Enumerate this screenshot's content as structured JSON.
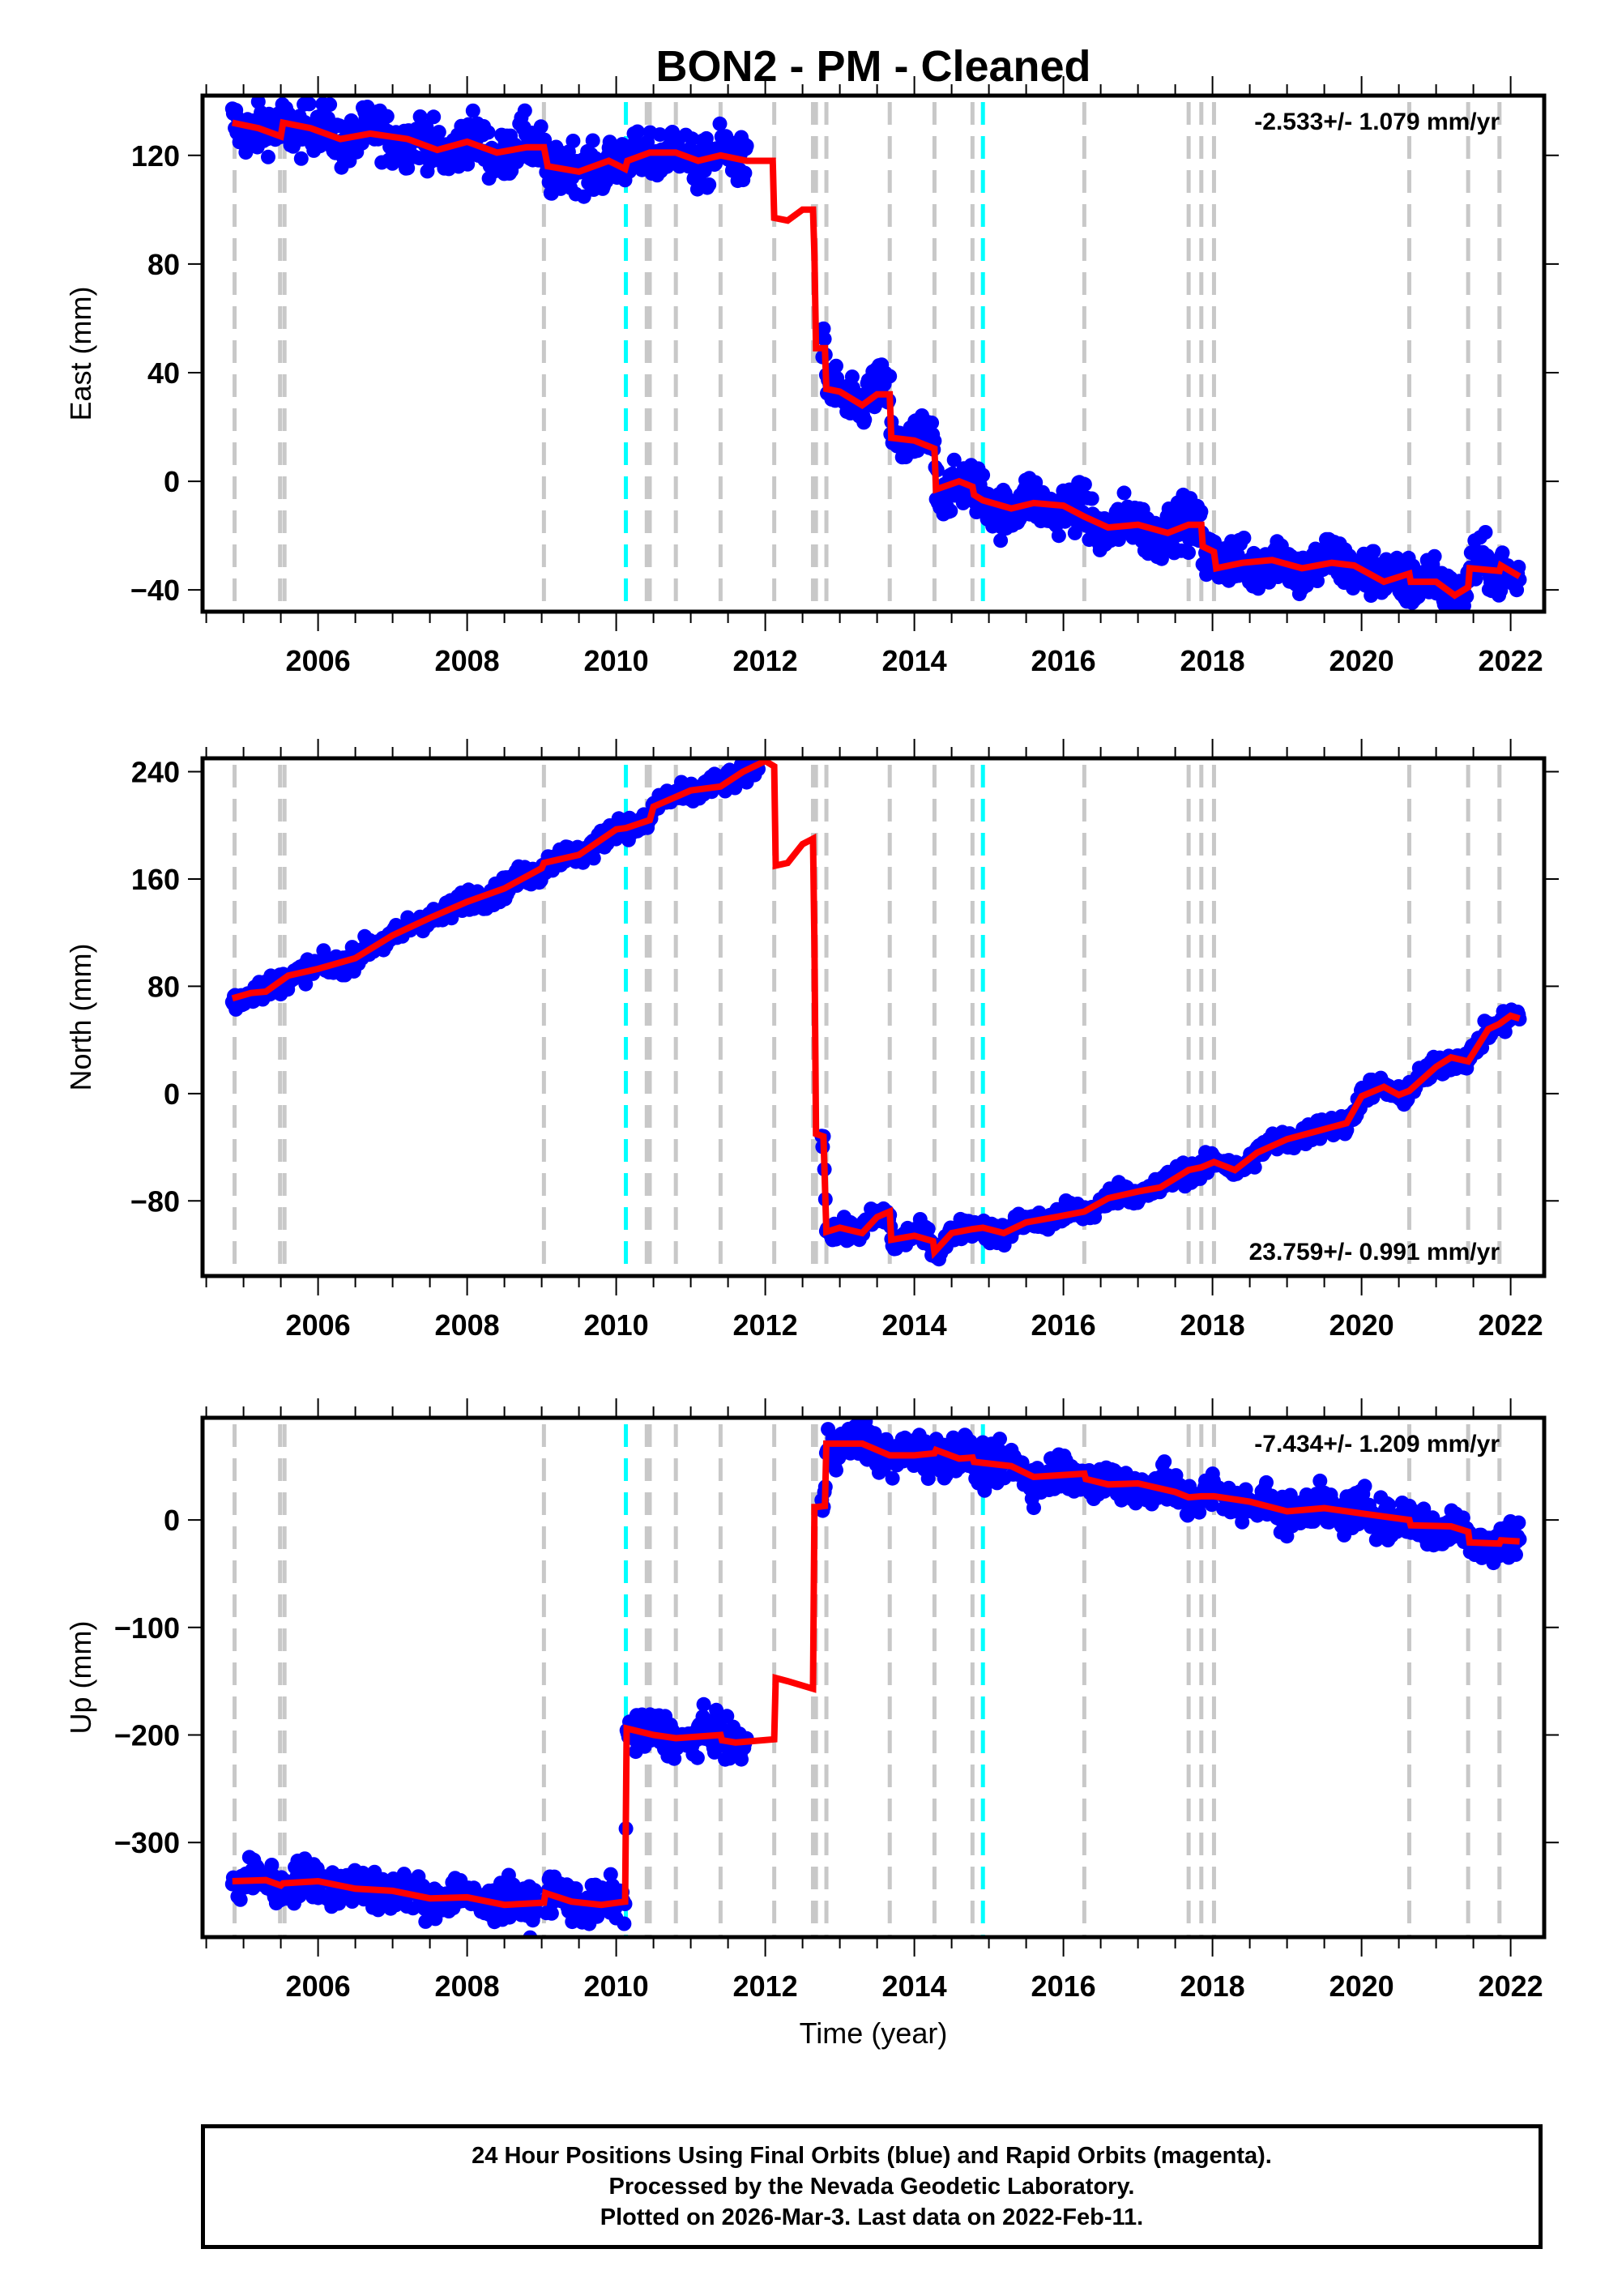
{
  "chart_data": {
    "type": "scatter",
    "title": "BON2  - PM - Cleaned",
    "xlabel": "Time (year)",
    "xlim": [
      2004.45,
      2022.45
    ],
    "x_ticks": [
      2006,
      2008,
      2010,
      2012,
      2014,
      2016,
      2018,
      2020,
      2022
    ],
    "x_tick_labels": [
      "2006",
      "2008",
      "2010",
      "2012",
      "2014",
      "2016",
      "2018",
      "2020",
      "2022"
    ],
    "grid": false,
    "colors": {
      "final_orbits": "#0000ff",
      "model": "#ff0000",
      "equipment_change": "#c8c8c8",
      "earthquake": "#00ffff",
      "frame": "#000000"
    },
    "event_markers": {
      "equipment_change": [
        2004.88,
        2005.49,
        2005.55,
        2009.03,
        2010.41,
        2010.45,
        2010.8,
        2011.4,
        2012.12,
        2012.64,
        2012.68,
        2012.82,
        2013.67,
        2014.27,
        2014.78,
        2016.28,
        2017.68,
        2017.85,
        2018.02,
        2020.64,
        2021.43,
        2021.85
      ],
      "earthquake": [
        2010.13,
        2014.92
      ]
    },
    "data_range": [
      2004.85,
      2022.12
    ],
    "panels": [
      {
        "name": "east",
        "ylabel": "East (mm)",
        "ylim": [
          -48,
          142
        ],
        "y_ticks": [
          -40,
          0,
          40,
          80,
          120
        ],
        "y_tick_labels": [
          "−40",
          "0",
          "40",
          "80",
          "120"
        ],
        "rate_text": "-2.533+/- 1.079 mm/yr",
        "rate_position": "top-right",
        "spread": 4.5,
        "gaps": [
          [
            2011.75,
            2012.75
          ]
        ],
        "model": [
          [
            2004.85,
            132
          ],
          [
            2005.2,
            130
          ],
          [
            2005.5,
            127
          ],
          [
            2005.53,
            132
          ],
          [
            2005.9,
            130
          ],
          [
            2006.3,
            126
          ],
          [
            2006.7,
            128
          ],
          [
            2007.2,
            126
          ],
          [
            2007.6,
            122
          ],
          [
            2008.0,
            125
          ],
          [
            2008.4,
            121
          ],
          [
            2008.8,
            123
          ],
          [
            2009.03,
            123
          ],
          [
            2009.08,
            116
          ],
          [
            2009.5,
            114
          ],
          [
            2009.9,
            118
          ],
          [
            2010.12,
            115
          ],
          [
            2010.15,
            118
          ],
          [
            2010.45,
            121
          ],
          [
            2010.8,
            121
          ],
          [
            2011.1,
            118
          ],
          [
            2011.4,
            120
          ],
          [
            2011.75,
            118
          ],
          [
            2012.1,
            118
          ],
          [
            2012.12,
            97
          ],
          [
            2012.3,
            96
          ],
          [
            2012.5,
            100
          ],
          [
            2012.64,
            100
          ],
          [
            2012.66,
            83
          ],
          [
            2012.68,
            49
          ],
          [
            2012.8,
            49
          ],
          [
            2012.82,
            34
          ],
          [
            2013.0,
            33
          ],
          [
            2013.3,
            28
          ],
          [
            2013.5,
            32
          ],
          [
            2013.67,
            32
          ],
          [
            2013.69,
            16
          ],
          [
            2014.0,
            15
          ],
          [
            2014.27,
            12
          ],
          [
            2014.29,
            -3
          ],
          [
            2014.6,
            0
          ],
          [
            2014.78,
            -2
          ],
          [
            2014.8,
            -5
          ],
          [
            2014.92,
            -7
          ],
          [
            2015.3,
            -10
          ],
          [
            2015.6,
            -8
          ],
          [
            2016.0,
            -9
          ],
          [
            2016.28,
            -13
          ],
          [
            2016.6,
            -17
          ],
          [
            2017.0,
            -16
          ],
          [
            2017.4,
            -19
          ],
          [
            2017.68,
            -16
          ],
          [
            2017.85,
            -16
          ],
          [
            2017.87,
            -24
          ],
          [
            2018.02,
            -26
          ],
          [
            2018.05,
            -32
          ],
          [
            2018.4,
            -30
          ],
          [
            2018.8,
            -29
          ],
          [
            2019.2,
            -32
          ],
          [
            2019.6,
            -30
          ],
          [
            2019.9,
            -31
          ],
          [
            2020.3,
            -37
          ],
          [
            2020.64,
            -34
          ],
          [
            2020.66,
            -37
          ],
          [
            2021.0,
            -37
          ],
          [
            2021.25,
            -42
          ],
          [
            2021.43,
            -39
          ],
          [
            2021.45,
            -32
          ],
          [
            2021.85,
            -33
          ],
          [
            2021.87,
            -31
          ],
          [
            2022.12,
            -35
          ]
        ]
      },
      {
        "name": "north",
        "ylabel": "North (mm)",
        "ylim": [
          -136,
          250
        ],
        "y_ticks": [
          -80,
          0,
          80,
          160,
          240
        ],
        "y_tick_labels": [
          "−80",
          "0",
          "80",
          "160",
          "240"
        ],
        "rate_text": "23.759+/- 0.991 mm/yr",
        "rate_position": "bottom-right",
        "spread": 4,
        "gaps": [
          [
            2011.95,
            2012.75
          ]
        ],
        "model": [
          [
            2004.85,
            71
          ],
          [
            2005.1,
            75
          ],
          [
            2005.3,
            76
          ],
          [
            2005.6,
            88
          ],
          [
            2006.0,
            93
          ],
          [
            2006.5,
            101
          ],
          [
            2007.0,
            118
          ],
          [
            2007.5,
            131
          ],
          [
            2008.0,
            143
          ],
          [
            2008.5,
            153
          ],
          [
            2009.0,
            168
          ],
          [
            2009.03,
            172
          ],
          [
            2009.5,
            178
          ],
          [
            2010.0,
            197
          ],
          [
            2010.13,
            198
          ],
          [
            2010.45,
            204
          ],
          [
            2010.5,
            214
          ],
          [
            2011.0,
            226
          ],
          [
            2011.4,
            229
          ],
          [
            2011.7,
            240
          ],
          [
            2012.0,
            248
          ],
          [
            2012.12,
            244
          ],
          [
            2012.14,
            170
          ],
          [
            2012.3,
            172
          ],
          [
            2012.5,
            186
          ],
          [
            2012.64,
            190
          ],
          [
            2012.66,
            110
          ],
          [
            2012.68,
            -30
          ],
          [
            2012.78,
            -32
          ],
          [
            2012.82,
            -103
          ],
          [
            2013.0,
            -100
          ],
          [
            2013.3,
            -104
          ],
          [
            2013.5,
            -92
          ],
          [
            2013.67,
            -88
          ],
          [
            2013.69,
            -109
          ],
          [
            2014.0,
            -106
          ],
          [
            2014.25,
            -110
          ],
          [
            2014.27,
            -118
          ],
          [
            2014.5,
            -104
          ],
          [
            2014.78,
            -101
          ],
          [
            2014.92,
            -100
          ],
          [
            2015.2,
            -104
          ],
          [
            2015.5,
            -96
          ],
          [
            2015.9,
            -92
          ],
          [
            2016.28,
            -88
          ],
          [
            2016.6,
            -78
          ],
          [
            2017.0,
            -73
          ],
          [
            2017.3,
            -70
          ],
          [
            2017.68,
            -57
          ],
          [
            2017.85,
            -55
          ],
          [
            2018.02,
            -51
          ],
          [
            2018.3,
            -57
          ],
          [
            2018.6,
            -44
          ],
          [
            2019.0,
            -34
          ],
          [
            2019.4,
            -28
          ],
          [
            2019.8,
            -22
          ],
          [
            2020.0,
            -2
          ],
          [
            2020.3,
            5
          ],
          [
            2020.5,
            -1
          ],
          [
            2020.64,
            2
          ],
          [
            2021.0,
            20
          ],
          [
            2021.2,
            27
          ],
          [
            2021.43,
            24
          ],
          [
            2021.7,
            48
          ],
          [
            2021.85,
            52
          ],
          [
            2022.0,
            58
          ],
          [
            2022.12,
            56
          ]
        ]
      },
      {
        "name": "up",
        "ylabel": "Up (mm)",
        "ylim": [
          -388,
          95
        ],
        "y_ticks": [
          -300,
          -200,
          -100,
          0
        ],
        "y_tick_labels": [
          "−300",
          "−200",
          "−100",
          "0"
        ],
        "rate_text": "-7.434+/- 1.209 mm/yr",
        "rate_position": "top-right",
        "spread": 9,
        "gaps": [
          [
            2008.95,
            2009.05
          ],
          [
            2011.75,
            2012.75
          ]
        ],
        "model": [
          [
            2004.85,
            -336
          ],
          [
            2005.3,
            -335
          ],
          [
            2005.5,
            -340
          ],
          [
            2005.53,
            -338
          ],
          [
            2006.0,
            -336
          ],
          [
            2006.5,
            -343
          ],
          [
            2007.0,
            -345
          ],
          [
            2007.5,
            -352
          ],
          [
            2008.0,
            -351
          ],
          [
            2008.5,
            -358
          ],
          [
            2009.03,
            -356
          ],
          [
            2009.05,
            -347
          ],
          [
            2009.4,
            -355
          ],
          [
            2009.8,
            -358
          ],
          [
            2010.12,
            -355
          ],
          [
            2010.14,
            -194
          ],
          [
            2010.5,
            -200
          ],
          [
            2010.8,
            -203
          ],
          [
            2011.4,
            -200
          ],
          [
            2011.42,
            -205
          ],
          [
            2011.6,
            -207
          ],
          [
            2012.12,
            -204
          ],
          [
            2012.14,
            -147
          ],
          [
            2012.3,
            -150
          ],
          [
            2012.64,
            -157
          ],
          [
            2012.66,
            12
          ],
          [
            2012.68,
            12
          ],
          [
            2012.8,
            13
          ],
          [
            2012.82,
            71
          ],
          [
            2013.3,
            71
          ],
          [
            2013.67,
            60
          ],
          [
            2014.0,
            60
          ],
          [
            2014.27,
            62
          ],
          [
            2014.29,
            65
          ],
          [
            2014.6,
            57
          ],
          [
            2014.78,
            58
          ],
          [
            2014.8,
            54
          ],
          [
            2015.3,
            50
          ],
          [
            2015.6,
            40
          ],
          [
            2016.28,
            43
          ],
          [
            2016.3,
            38
          ],
          [
            2016.6,
            33
          ],
          [
            2017.0,
            34
          ],
          [
            2017.5,
            26
          ],
          [
            2017.68,
            21
          ],
          [
            2017.85,
            22
          ],
          [
            2018.02,
            22
          ],
          [
            2018.5,
            17
          ],
          [
            2019.0,
            8
          ],
          [
            2019.5,
            11
          ],
          [
            2020.0,
            6
          ],
          [
            2020.64,
            0
          ],
          [
            2020.66,
            -5
          ],
          [
            2021.2,
            -6
          ],
          [
            2021.43,
            -11
          ],
          [
            2021.45,
            -21
          ],
          [
            2021.85,
            -22
          ],
          [
            2021.87,
            -19
          ],
          [
            2022.12,
            -20
          ]
        ]
      }
    ]
  },
  "footer": {
    "lines": [
      "24 Hour Positions Using Final Orbits (blue) and Rapid Orbits (magenta).",
      "Processed by the Nevada Geodetic Laboratory.",
      "Plotted on 2026-Mar-3. Last data on 2022-Feb-11."
    ]
  }
}
